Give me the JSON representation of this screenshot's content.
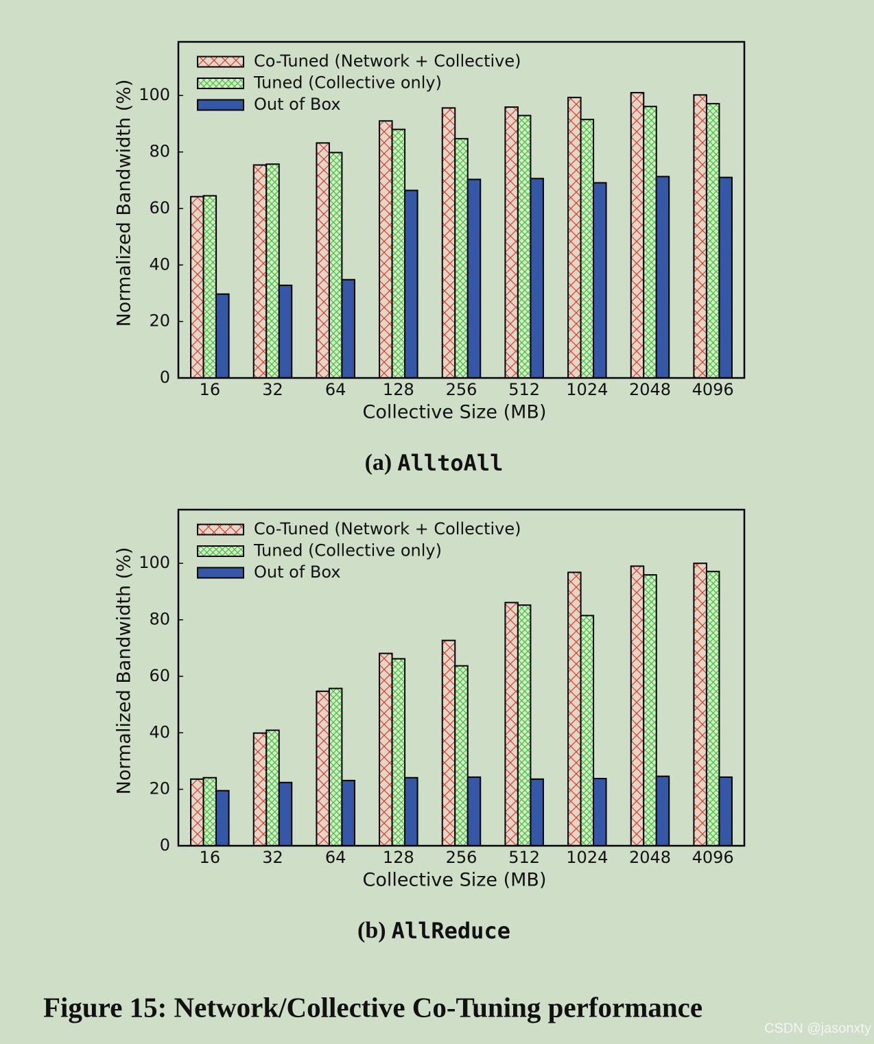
{
  "chart_data": [
    {
      "type": "bar",
      "caption_label": "(a)",
      "caption": "AlltoAll",
      "x_label": "Collective Size (MB)",
      "y_label": "Normalized Bandwidth (%)",
      "categories": [
        "16",
        "32",
        "64",
        "128",
        "256",
        "512",
        "1024",
        "2048",
        "4096"
      ],
      "series": [
        {
          "name": "Co-Tuned (Network + Collective)",
          "color": "#e03a30",
          "hatch": "x",
          "values": [
            64.2,
            75.4,
            83.2,
            91.0,
            95.6,
            95.9,
            99.3,
            101.0,
            100.2
          ]
        },
        {
          "name": "Tuned (Collective only)",
          "color": "#2ecc2e",
          "hatch": "xx",
          "values": [
            64.5,
            75.7,
            79.8,
            88.0,
            84.7,
            92.9,
            91.5,
            96.1,
            97.1
          ]
        },
        {
          "name": "Out of Box",
          "color": "#3557a8",
          "values": [
            29.7,
            32.8,
            34.8,
            66.4,
            70.3,
            70.6,
            69.1,
            71.3,
            71.0
          ]
        }
      ],
      "ylim": [
        0,
        119
      ],
      "yticks": [
        0,
        20,
        40,
        60,
        80,
        100
      ],
      "legend": "upper left"
    },
    {
      "type": "bar",
      "caption_label": "(b)",
      "caption": "AllReduce",
      "x_label": "Collective Size (MB)",
      "y_label": "Normalized Bandwidth (%)",
      "categories": [
        "16",
        "32",
        "64",
        "128",
        "256",
        "512",
        "1024",
        "2048",
        "4096"
      ],
      "series": [
        {
          "name": "Co-Tuned (Network + Collective)",
          "color": "#e03a30",
          "hatch": "x",
          "values": [
            23.6,
            39.9,
            54.7,
            68.1,
            72.7,
            86.1,
            96.8,
            99.0,
            100.0
          ]
        },
        {
          "name": "Tuned (Collective only)",
          "color": "#2ecc2e",
          "hatch": "xx",
          "values": [
            24.1,
            40.9,
            55.7,
            66.2,
            63.7,
            85.2,
            81.5,
            95.9,
            97.1
          ]
        },
        {
          "name": "Out of Box",
          "color": "#3557a8",
          "values": [
            19.5,
            22.4,
            23.1,
            24.1,
            24.3,
            23.6,
            23.8,
            24.6,
            24.3
          ]
        }
      ],
      "ylim": [
        0,
        119
      ],
      "yticks": [
        0,
        20,
        40,
        60,
        80,
        100
      ],
      "legend": "upper left"
    }
  ],
  "figure_caption": "Figure 15: Network/Collective Co-Tuning performance",
  "watermark": "CSDN @jasonxty"
}
